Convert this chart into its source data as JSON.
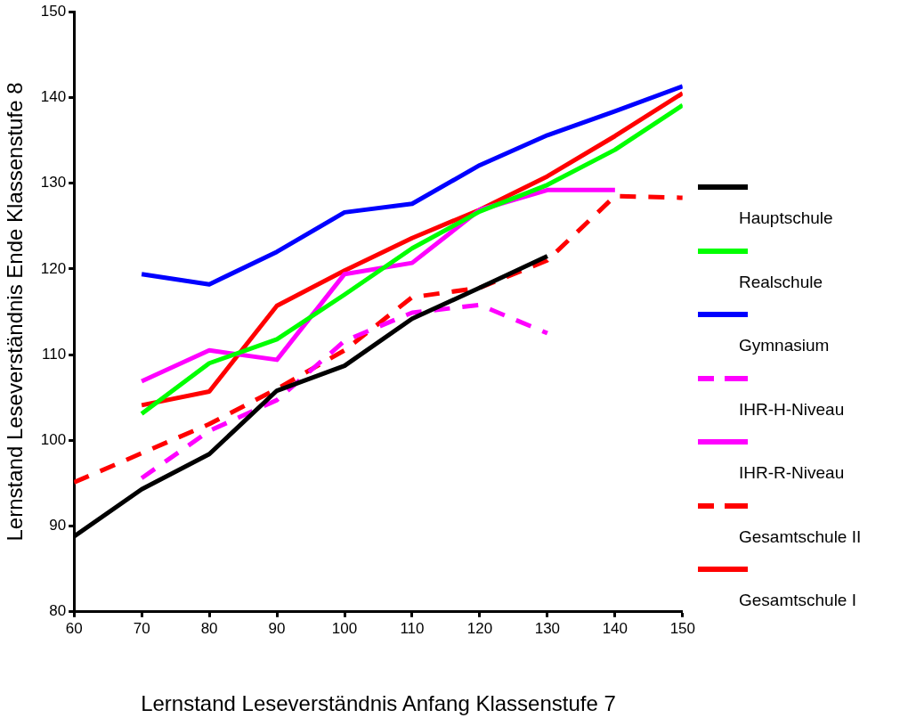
{
  "chart_data": {
    "type": "line",
    "xlabel": "Lernstand Leseverständnis Anfang Klassenstufe 7",
    "ylabel": "Lernstand Leseverständnis Ende Klassenstufe 8",
    "x": [
      60,
      70,
      80,
      90,
      100,
      110,
      120,
      130,
      140,
      150
    ],
    "series": [
      {
        "name": "Hauptschule",
        "color": "#000000",
        "line_style": "solid",
        "values": [
          88.8,
          94.3,
          98.4,
          105.8,
          108.7,
          114.2,
          117.8,
          121.5,
          null,
          null
        ]
      },
      {
        "name": "Realschule",
        "color": "#00ff00",
        "line_style": "solid",
        "values": [
          null,
          103.1,
          109,
          111.8,
          117,
          122.4,
          126.7,
          129.8,
          133.9,
          139.1
        ]
      },
      {
        "name": "Gymnasium",
        "color": "#0000ff",
        "line_style": "solid",
        "values": [
          null,
          119.4,
          118.2,
          122,
          126.6,
          127.6,
          132.1,
          135.6,
          138.4,
          141.3
        ]
      },
      {
        "name": "IHR-H-Niveau",
        "color": "#ff00ff",
        "line_style": "dashed",
        "values": [
          null,
          95.6,
          101.1,
          104.7,
          111.6,
          114.9,
          115.8,
          112.5,
          null,
          null
        ]
      },
      {
        "name": "IHR-R-Niveau",
        "color": "#ff00ff",
        "line_style": "solid",
        "values": [
          null,
          106.9,
          110.5,
          109.4,
          119.4,
          120.7,
          126.9,
          129.2,
          129.2,
          null
        ]
      },
      {
        "name": "Gesamtschule II",
        "color": "#ff0000",
        "line_style": "dashed",
        "values": [
          95.1,
          98.5,
          101.9,
          106,
          110.5,
          116.7,
          117.8,
          121,
          128.5,
          128.3
        ]
      },
      {
        "name": "Gesamtschule I",
        "color": "#ff0000",
        "line_style": "solid",
        "values": [
          null,
          104.1,
          105.7,
          115.7,
          119.8,
          123.6,
          126.9,
          130.8,
          135.5,
          140.5
        ]
      }
    ],
    "xlim": [
      60,
      150
    ],
    "xticks": [
      60,
      70,
      80,
      90,
      100,
      110,
      120,
      130,
      140,
      150
    ],
    "ylim": [
      80,
      150
    ],
    "yticks": [
      80,
      90,
      100,
      110,
      120,
      130,
      140,
      150
    ],
    "grid": false,
    "legend": "right",
    "marker": "none"
  }
}
